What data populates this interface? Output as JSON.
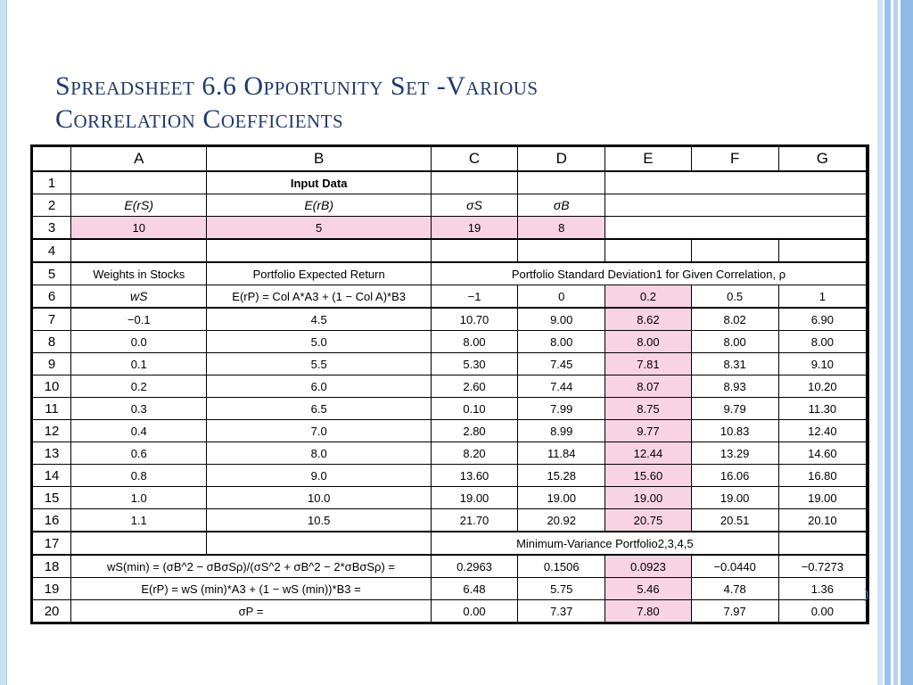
{
  "slide": {
    "title_line1": "Spreadsheet 6.6 Opportunity Set -Various",
    "title_line2": "Correlation Coefficients"
  },
  "sheet": {
    "columns": [
      "A",
      "B",
      "C",
      "D",
      "E",
      "F",
      "G"
    ],
    "row_numbers": [
      "1",
      "2",
      "3",
      "4",
      "5",
      "6",
      "7",
      "8",
      "9",
      "10",
      "11",
      "12",
      "13",
      "14",
      "15",
      "16",
      "17",
      "18",
      "19",
      "20"
    ],
    "input_label": "Input Data",
    "row2": {
      "a": "E(rS)",
      "b": "E(rB)",
      "c": "σS",
      "d": "σB"
    },
    "row3": {
      "a": "10",
      "b": "5",
      "c": "19",
      "d": "8"
    },
    "row5": {
      "a": "Weights in Stocks",
      "b": "Portfolio Expected Return",
      "cg": "Portfolio Standard Deviation1 for Given Correlation, ρ"
    },
    "row6": {
      "a": "wS",
      "b": "E(rP) = Col A*A3 + (1 − Col A)*B3",
      "c": "−1",
      "d": "0",
      "e": "0.2",
      "f": "0.5",
      "g": "1"
    },
    "data_rows": [
      {
        "w": "−0.1",
        "er": "4.5",
        "c": "10.70",
        "d": "9.00",
        "e": "8.62",
        "f": "8.02",
        "g": "6.90"
      },
      {
        "w": "0.0",
        "er": "5.0",
        "c": "8.00",
        "d": "8.00",
        "e": "8.00",
        "f": "8.00",
        "g": "8.00"
      },
      {
        "w": "0.1",
        "er": "5.5",
        "c": "5.30",
        "d": "7.45",
        "e": "7.81",
        "f": "8.31",
        "g": "9.10"
      },
      {
        "w": "0.2",
        "er": "6.0",
        "c": "2.60",
        "d": "7.44",
        "e": "8.07",
        "f": "8.93",
        "g": "10.20"
      },
      {
        "w": "0.3",
        "er": "6.5",
        "c": "0.10",
        "d": "7.99",
        "e": "8.75",
        "f": "9.79",
        "g": "11.30"
      },
      {
        "w": "0.4",
        "er": "7.0",
        "c": "2.80",
        "d": "8.99",
        "e": "9.77",
        "f": "10.83",
        "g": "12.40"
      },
      {
        "w": "0.6",
        "er": "8.0",
        "c": "8.20",
        "d": "11.84",
        "e": "12.44",
        "f": "13.29",
        "g": "14.60"
      },
      {
        "w": "0.8",
        "er": "9.0",
        "c": "13.60",
        "d": "15.28",
        "e": "15.60",
        "f": "16.06",
        "g": "16.80"
      },
      {
        "w": "1.0",
        "er": "10.0",
        "c": "19.00",
        "d": "19.00",
        "e": "19.00",
        "f": "19.00",
        "g": "19.00"
      },
      {
        "w": "1.1",
        "er": "10.5",
        "c": "21.70",
        "d": "20.92",
        "e": "20.75",
        "f": "20.51",
        "g": "20.10"
      }
    ],
    "row17": {
      "cf": "Minimum-Variance Portfolio2,3,4,5"
    },
    "row18": {
      "label": "wS(min) = (σB^2 − σBσSρ)/(σS^2 + σB^2 − 2*σBσSρ) =",
      "c": "0.2963",
      "d": "0.1506",
      "e": "0.0923",
      "f": "−0.0440",
      "g": "−0.7273"
    },
    "row19": {
      "label": "E(rP) = wS (min)*A3 + (1 − wS (min))*B3 =",
      "c": "6.48",
      "d": "5.75",
      "e": "5.46",
      "f": "4.78",
      "g": "1.36"
    },
    "row20": {
      "label": "σP =",
      "c": "0.00",
      "d": "7.37",
      "e": "7.80",
      "f": "7.97",
      "g": "0.00"
    }
  },
  "edge_mark": ")"
}
